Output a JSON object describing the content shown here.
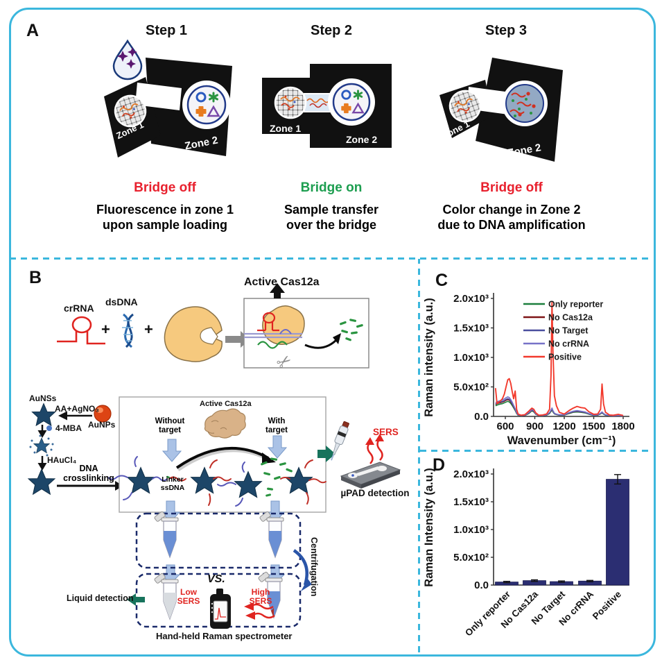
{
  "colors": {
    "border": "#3bb7dd",
    "red": "#e8212e",
    "green": "#1d9e50",
    "navy_dash": "#1a2a6a",
    "bar": "#2b2e72"
  },
  "icons": {
    "scissors": "✂"
  },
  "panelA": {
    "label": "A",
    "steps": [
      {
        "title": "Step 1",
        "zone1": "Zone 1",
        "zone2": "Zone 2",
        "status": "Bridge off",
        "desc1": "Fluorescence in zone 1",
        "desc2": "upon sample loading"
      },
      {
        "title": "Step 2",
        "zone1": "Zone 1",
        "zone2": "Zone 2",
        "status": "Bridge on",
        "desc1": "Sample transfer",
        "desc2": "over the bridge"
      },
      {
        "title": "Step 3",
        "zone1": "Zone 1",
        "zone2": "Zone 2",
        "status": "Bridge off",
        "desc1": "Color change in Zone 2",
        "desc2": "due to DNA amplification"
      }
    ]
  },
  "panelB": {
    "label": "B",
    "crRNA": "crRNA",
    "plus": "+",
    "dsDNA": "dsDNA",
    "active_cas12a_top": "Active Cas12a",
    "aunss": "AuNSs",
    "aa_agno3": "AA+AgNO₃",
    "aunps": "AuNPs",
    "mba": "4-MBA",
    "haucl4": "HAuCl₄",
    "dna1": "DNA",
    "dna2": "crosslinking",
    "without1": "Without",
    "without2": "target",
    "with1": "With",
    "with2": "target",
    "active_cas12a_inner": "Active Cas12a",
    "linker1": "Linker",
    "linker2": "ssDNA",
    "sers": "SERS",
    "upad": "µPAD detection",
    "centrifugation": "Centrifugation",
    "vs": "VS.",
    "low1": "Low",
    "low2": "SERS",
    "high1": "High",
    "high2": "SERS",
    "liquid": "Liquid detection",
    "handheld": "Hand-held Raman spectrometer"
  },
  "panelC": {
    "label": "C"
  },
  "panelD": {
    "label": "D"
  },
  "chart_data": [
    {
      "panel": "C",
      "type": "line",
      "xlabel": "Wavenumber (cm⁻¹)",
      "ylabel": "Raman intensity (a.u.)",
      "xlim": [
        490,
        1850
      ],
      "ylim": [
        0,
        2000
      ],
      "xticks": [
        600,
        900,
        1200,
        1500,
        1800
      ],
      "ytick_values": [
        0,
        500,
        1000,
        1500,
        2000
      ],
      "ytick_labels": [
        "0.0",
        "5.0x10²",
        "1.0x10³",
        "1.5x10³",
        "2.0x10³"
      ],
      "legend_position": "top-right",
      "grid": false,
      "x": [
        500,
        515,
        530,
        550,
        570,
        590,
        610,
        625,
        640,
        655,
        670,
        685,
        700,
        715,
        730,
        760,
        800,
        840,
        870,
        890,
        910,
        940,
        980,
        1020,
        1050,
        1065,
        1075,
        1085,
        1100,
        1120,
        1150,
        1200,
        1250,
        1290,
        1330,
        1370,
        1410,
        1450,
        1500,
        1540,
        1570,
        1585,
        1600,
        1620,
        1660,
        1700,
        1750,
        1800
      ],
      "series": [
        {
          "name": "Only reporter",
          "color": "#1b7e3c",
          "y": [
            180,
            190,
            200,
            210,
            215,
            230,
            245,
            255,
            245,
            220,
            185,
            145,
            100,
            50,
            20,
            13,
            17,
            50,
            95,
            75,
            35,
            13,
            13,
            20,
            50,
            85,
            110,
            75,
            42,
            30,
            20,
            20,
            50,
            70,
            75,
            70,
            60,
            38,
            17,
            20,
            42,
            60,
            38,
            20,
            13,
            10,
            13,
            9
          ]
        },
        {
          "name": "No Cas12a",
          "color": "#7e1416",
          "y": [
            200,
            215,
            225,
            233,
            242,
            257,
            275,
            285,
            275,
            247,
            210,
            162,
            114,
            57,
            24,
            14,
            19,
            57,
            105,
            86,
            38,
            14,
            14,
            24,
            57,
            95,
            124,
            86,
            48,
            33,
            24,
            24,
            57,
            76,
            86,
            76,
            67,
            43,
            19,
            24,
            48,
            67,
            43,
            24,
            14,
            11,
            14,
            10
          ]
        },
        {
          "name": "No Target",
          "color": "#4a4e9e",
          "y": [
            210,
            225,
            235,
            245,
            255,
            270,
            290,
            300,
            290,
            260,
            220,
            170,
            120,
            60,
            25,
            15,
            20,
            60,
            110,
            90,
            40,
            15,
            15,
            25,
            60,
            100,
            130,
            90,
            50,
            35,
            25,
            25,
            60,
            80,
            90,
            80,
            70,
            45,
            20,
            25,
            50,
            70,
            45,
            25,
            15,
            12,
            15,
            10
          ]
        },
        {
          "name": "No crRNA",
          "color": "#7672c8",
          "y": [
            230,
            248,
            258,
            270,
            280,
            297,
            320,
            330,
            320,
            286,
            242,
            187,
            132,
            66,
            28,
            17,
            22,
            66,
            120,
            99,
            44,
            17,
            17,
            28,
            66,
            110,
            143,
            99,
            55,
            39,
            28,
            28,
            66,
            88,
            99,
            88,
            77,
            50,
            22,
            28,
            55,
            77,
            50,
            28,
            17,
            13,
            17,
            11
          ]
        },
        {
          "name": "Positive",
          "color": "#f2392c",
          "y": [
            480,
            220,
            240,
            260,
            300,
            380,
            520,
            620,
            640,
            560,
            420,
            300,
            430,
            120,
            40,
            20,
            30,
            90,
            140,
            120,
            60,
            20,
            25,
            40,
            120,
            700,
            1930,
            1100,
            350,
            180,
            70,
            40,
            100,
            140,
            170,
            150,
            140,
            80,
            35,
            40,
            120,
            550,
            210,
            70,
            25,
            20,
            35,
            15
          ]
        }
      ]
    },
    {
      "panel": "D",
      "type": "bar",
      "ylabel": "Raman Intensity (a.u.)",
      "categories": [
        "Only reporter",
        "No Cas12a",
        "No Target",
        "No crRNA",
        "Positive"
      ],
      "values": [
        55,
        80,
        62,
        72,
        1905
      ],
      "errors": [
        12,
        14,
        12,
        12,
        85
      ],
      "bar_color": "#2b2e72",
      "ylim": [
        0,
        2000
      ],
      "ytick_values": [
        0,
        500,
        1000,
        1500,
        2000
      ],
      "ytick_labels": [
        "0.0",
        "5.0x10²",
        "1.0x10³",
        "1.5x10³",
        "2.0x10³"
      ],
      "categories_rotation": -45,
      "grid": false
    }
  ]
}
